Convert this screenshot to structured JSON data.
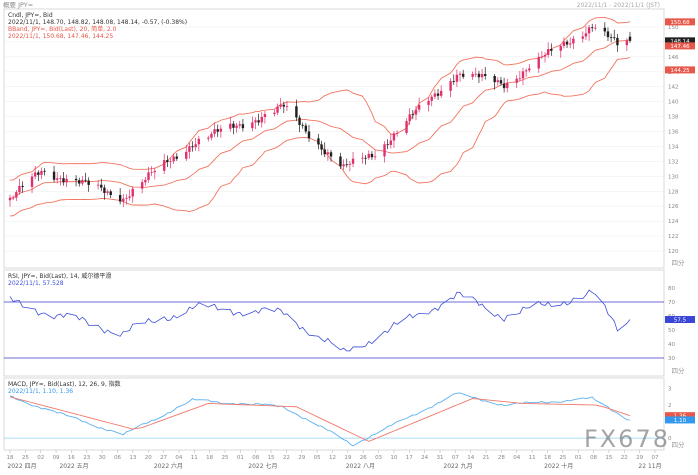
{
  "header": {
    "symbol": "概要 JPY=",
    "timestamp": "2022/11/1 - 2022/11/1 (JST)"
  },
  "price_panel": {
    "legend_line1": "Cndl, JPY=, Bid",
    "legend_line2": "2022/11/1, 148.70, 148.82, 148.08, 148.14, -0.57, (-0.38%)",
    "legend_line3": "BBand, JPY=, Bid(Last), 20, 简单, 2.0",
    "legend_line4": "2022/11/1, 150.68, 147.46, 144.25",
    "yticks": [
      "150",
      "148",
      "146",
      "144",
      "142",
      "140",
      "138",
      "136",
      "134",
      "132",
      "130",
      "128",
      "126",
      "124",
      "122",
      "120"
    ],
    "badges": [
      {
        "text": "150.68",
        "value": 150.68,
        "color": "#e8584a"
      },
      {
        "text": "148.14",
        "value": 148.14,
        "color": "#222222"
      },
      {
        "text": "147.46",
        "value": 147.46,
        "color": "#e8584a"
      },
      {
        "text": "144.25",
        "value": 144.25,
        "color": "#e8584a"
      }
    ],
    "unit_label": "四分"
  },
  "rsi_panel": {
    "legend_line1": "RSI, JPY=, Bid(Last), 14, 威尔德平滑",
    "legend_line2": "2022/11/1, 57.528",
    "yticks": [
      "80",
      "70",
      "60",
      "50",
      "40",
      "30"
    ],
    "badge": {
      "text": "57.5",
      "value": 57.5,
      "color": "#3a46d6"
    },
    "unit_label": "四分"
  },
  "macd_panel": {
    "legend_line1": "MACD, JPY=, Bid(Last), 12, 26, 9, 指数",
    "legend_line2": "2022/11/1, 1.10, 1.36",
    "yticks": [
      "3",
      "2",
      "1",
      "0"
    ],
    "badges": [
      {
        "text": "1.36",
        "value": 1.36,
        "color": "#e8584a"
      },
      {
        "text": "1.10",
        "value": 1.1,
        "color": "#3399ee"
      }
    ],
    "unit_label": "四分"
  },
  "x_axis": {
    "day_ticks": [
      "18",
      "25",
      "02",
      "09",
      "16",
      "23",
      "30",
      "06",
      "13",
      "20",
      "27",
      "04",
      "11",
      "18",
      "25",
      "01",
      "08",
      "15",
      "22",
      "29",
      "05",
      "12",
      "19",
      "26",
      "03",
      "10",
      "17",
      "24",
      "31",
      "07",
      "14",
      "21",
      "28",
      "04",
      "11",
      "18",
      "25",
      "01",
      "08",
      "15",
      "22",
      "29",
      "07"
    ],
    "month_labels": [
      "2022 四月",
      "2022 五月",
      "2022 六月",
      "2022 七月",
      "2022 八月",
      "2022 九月",
      "2022 十月",
      "22 11月"
    ]
  },
  "watermark": "FX678",
  "colors": {
    "up_candle": "#e0306e",
    "down_candle": "#1f1f1f",
    "bollinger": "#f2745e",
    "rsi": "#3f4fd8",
    "rsi_levels": "#3c3cc8",
    "macd": "#5ab0f0",
    "signal": "#f0786a",
    "zero_line": "#8fd0f5"
  },
  "chart_data": [
    {
      "type": "candlestick",
      "name": "Cndl, JPY=, Bid",
      "period": "daily",
      "x_range": [
        "2022-04-18",
        "2022-11-01"
      ],
      "ylim": [
        118,
        152
      ],
      "ohlc_last": {
        "date": "2022-11-01",
        "open": 148.7,
        "high": 148.82,
        "low": 148.08,
        "close": 148.14
      },
      "close_keypoints": [
        {
          "date": "2022-04-18",
          "close": 126.8
        },
        {
          "date": "2022-04-28",
          "close": 130.8
        },
        {
          "date": "2022-05-24",
          "close": 127.2
        },
        {
          "date": "2022-06-15",
          "close": 134.5
        },
        {
          "date": "2022-07-14",
          "close": 139.2
        },
        {
          "date": "2022-08-02",
          "close": 131.0
        },
        {
          "date": "2022-08-12",
          "close": 133.2
        },
        {
          "date": "2022-09-07",
          "close": 143.8
        },
        {
          "date": "2022-09-22",
          "close": 142.4
        },
        {
          "date": "2022-10-20",
          "close": 150.2
        },
        {
          "date": "2022-10-28",
          "close": 147.5
        },
        {
          "date": "2022-11-01",
          "close": 148.14
        }
      ],
      "overlays": [
        {
          "name": "BBand",
          "period": 20,
          "std": 2.0,
          "last": {
            "upper": 150.68,
            "middle": 147.46,
            "lower": 144.25
          }
        }
      ]
    },
    {
      "type": "line",
      "name": "RSI, JPY=, Bid(Last), 14",
      "ylim": [
        20,
        90
      ],
      "levels": [
        70,
        30
      ],
      "last": 57.528,
      "keypoints": [
        {
          "date": "2022-04-18",
          "value": 70
        },
        {
          "date": "2022-05-24",
          "value": 48
        },
        {
          "date": "2022-06-15",
          "value": 66
        },
        {
          "date": "2022-07-14",
          "value": 62
        },
        {
          "date": "2022-08-02",
          "value": 33
        },
        {
          "date": "2022-08-12",
          "value": 45
        },
        {
          "date": "2022-09-07",
          "value": 75
        },
        {
          "date": "2022-09-22",
          "value": 60
        },
        {
          "date": "2022-10-20",
          "value": 76
        },
        {
          "date": "2022-10-28",
          "value": 52
        },
        {
          "date": "2022-11-01",
          "value": 57.5
        }
      ]
    },
    {
      "type": "line",
      "name": "MACD, JPY=, Bid(Last), 12, 26, 9",
      "ylim": [
        -0.6,
        3.4
      ],
      "last": {
        "macd": 1.1,
        "signal": 1.36
      },
      "keypoints_macd": [
        {
          "date": "2022-04-18",
          "value": 2.5
        },
        {
          "date": "2022-05-24",
          "value": 0.2
        },
        {
          "date": "2022-06-15",
          "value": 2.3
        },
        {
          "date": "2022-07-14",
          "value": 1.9
        },
        {
          "date": "2022-08-05",
          "value": -0.4
        },
        {
          "date": "2022-09-07",
          "value": 2.7
        },
        {
          "date": "2022-09-22",
          "value": 2.0
        },
        {
          "date": "2022-10-20",
          "value": 2.4
        },
        {
          "date": "2022-11-01",
          "value": 1.1
        }
      ],
      "keypoints_signal": [
        {
          "date": "2022-04-18",
          "value": 2.5
        },
        {
          "date": "2022-05-28",
          "value": 0.5
        },
        {
          "date": "2022-06-20",
          "value": 2.1
        },
        {
          "date": "2022-07-18",
          "value": 1.9
        },
        {
          "date": "2022-08-10",
          "value": -0.2
        },
        {
          "date": "2022-09-12",
          "value": 2.4
        },
        {
          "date": "2022-09-28",
          "value": 2.1
        },
        {
          "date": "2022-10-22",
          "value": 2.0
        },
        {
          "date": "2022-11-01",
          "value": 1.36
        }
      ]
    }
  ]
}
